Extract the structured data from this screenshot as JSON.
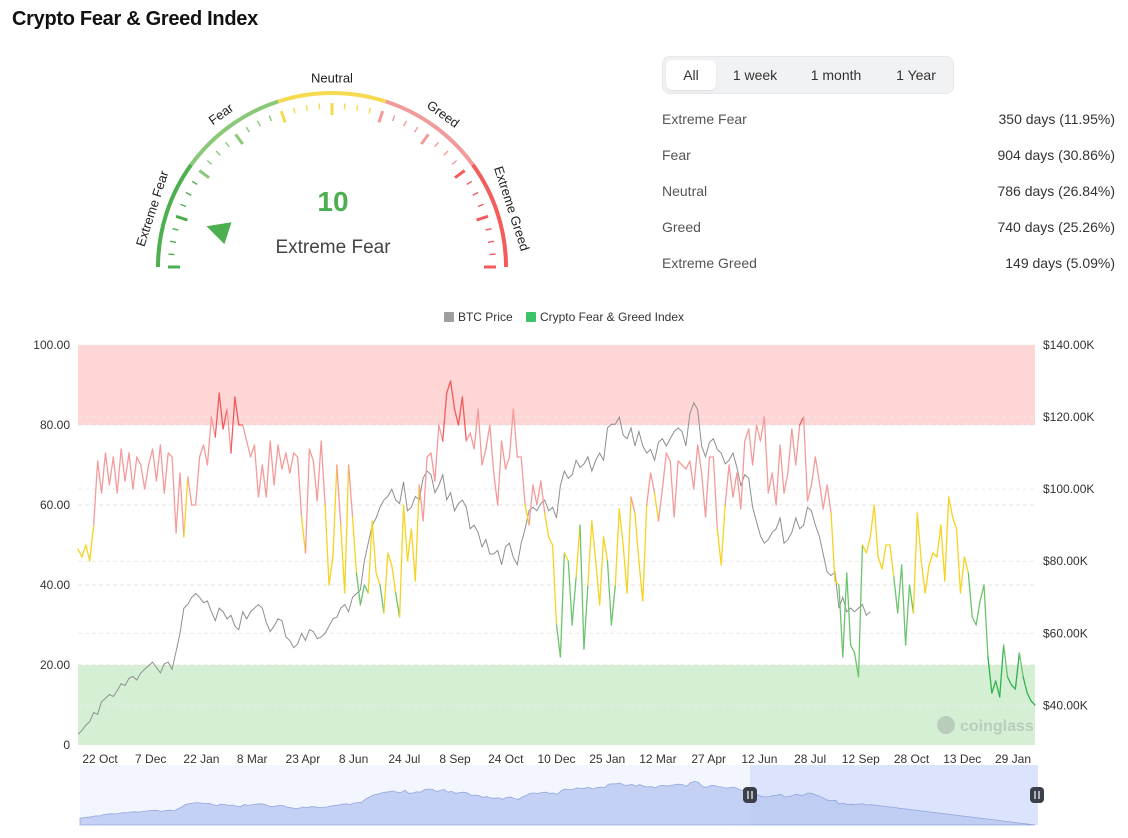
{
  "page": {
    "title": "Crypto Fear & Greed Index"
  },
  "gauge": {
    "value": "10",
    "status": "Extreme Fear",
    "zone_labels": [
      "Extreme Fear",
      "Fear",
      "Neutral",
      "Greed",
      "Extreme Greed"
    ],
    "colors": {
      "extreme_fear": "#4caf50",
      "fear": "#8bc97a",
      "neutral": "#f5d94e",
      "greed": "#f29b9b",
      "extreme_greed": "#f25c5c"
    }
  },
  "tabs": [
    {
      "label": "All",
      "active": true
    },
    {
      "label": "1 week",
      "active": false
    },
    {
      "label": "1 month",
      "active": false
    },
    {
      "label": "1 Year",
      "active": false
    }
  ],
  "stats": [
    {
      "label": "Extreme Fear",
      "value": "350 days (11.95%)"
    },
    {
      "label": "Fear",
      "value": "904 days (30.86%)"
    },
    {
      "label": "Neutral",
      "value": "786 days (26.84%)"
    },
    {
      "label": "Greed",
      "value": "740 days (25.26%)"
    },
    {
      "label": "Extreme Greed",
      "value": "149 days (5.09%)"
    }
  ],
  "legend": [
    {
      "label": "BTC Price",
      "color": "#9e9e9e"
    },
    {
      "label": "Crypto Fear & Greed Index",
      "color": "#3cc26a"
    }
  ],
  "watermark": "coinglass",
  "chart_data": {
    "type": "line",
    "x_tick_labels": [
      "22 Oct",
      "7 Dec",
      "22 Jan",
      "8 Mar",
      "23 Apr",
      "8 Jun",
      "24 Jul",
      "8 Sep",
      "24 Oct",
      "10 Dec",
      "25 Jan",
      "12 Mar",
      "27 Apr",
      "12 Jun",
      "28 Jul",
      "12 Sep",
      "28 Oct",
      "13 Dec",
      "29 Jan"
    ],
    "y_left_ticks": [
      "100.00",
      "80.00",
      "60.00",
      "40.00",
      "20.00",
      "0"
    ],
    "y_right_ticks": [
      "$140.00K",
      "$120.00K",
      "$100.00K",
      "$80.00K",
      "$60.00K",
      "$40.00K"
    ],
    "ylim_left": [
      0,
      100
    ],
    "ylim_right": [
      29000,
      140000
    ],
    "zones": [
      {
        "from": 80,
        "to": 100,
        "color": "#ffd6d6"
      },
      {
        "from": 0,
        "to": 20,
        "color": "#d5efd5"
      }
    ],
    "band_colors": {
      "extreme_greed": "#f05a5a",
      "greed": "#f59a9a",
      "neutral": "#f5d320",
      "fear": "#6cc46c",
      "extreme_fear": "#2fb34a"
    },
    "grid": true,
    "legend_position": "top-center",
    "series": [
      {
        "name": "Crypto Fear & Greed Index",
        "axis": "left",
        "values": [
          49,
          47,
          50,
          46,
          55,
          71,
          63,
          73,
          65,
          72,
          63,
          74,
          66,
          73,
          64,
          72,
          70,
          64,
          70,
          74,
          66,
          75,
          63,
          73,
          72,
          53,
          68,
          52,
          67,
          60,
          60,
          72,
          75,
          70,
          82,
          77,
          88,
          79,
          84,
          73,
          87,
          80,
          80,
          76,
          72,
          75,
          62,
          70,
          62,
          76,
          65,
          75,
          69,
          73,
          68,
          73,
          72,
          57,
          48,
          74,
          71,
          61,
          76,
          60,
          40,
          47,
          70,
          55,
          38,
          70,
          57,
          43,
          35,
          40,
          38,
          56,
          43,
          40,
          33,
          48,
          45,
          38,
          32,
          60,
          46,
          54,
          41,
          65,
          56,
          72,
          73,
          66,
          80,
          76,
          88,
          91,
          84,
          80,
          87,
          76,
          78,
          74,
          84,
          70,
          74,
          80,
          68,
          60,
          76,
          69,
          72,
          84,
          72,
          72,
          60,
          55,
          65,
          60,
          66,
          58,
          52,
          50,
          30,
          22,
          48,
          46,
          30,
          42,
          55,
          24,
          40,
          56,
          46,
          35,
          52,
          46,
          30,
          40,
          59,
          50,
          38,
          62,
          58,
          46,
          36,
          60,
          68,
          63,
          56,
          64,
          73,
          71,
          57,
          71,
          70,
          69,
          71,
          64,
          75,
          68,
          57,
          72,
          72,
          54,
          45,
          60,
          70,
          62,
          68,
          59,
          76,
          79,
          70,
          80,
          76,
          82,
          63,
          68,
          60,
          75,
          63,
          68,
          79,
          70,
          80,
          82,
          61,
          65,
          72,
          66,
          59,
          65,
          58,
          41,
          40,
          22,
          43,
          25,
          23,
          17,
          50,
          48,
          52,
          60,
          47,
          44,
          50,
          50,
          42,
          33,
          45,
          25,
          40,
          33,
          58,
          46,
          38,
          45,
          48,
          47,
          55,
          41,
          62,
          57,
          54,
          38,
          47,
          43,
          32,
          30,
          36,
          40,
          22,
          13,
          16,
          12,
          25,
          17,
          15,
          14,
          23,
          17,
          13,
          11,
          10
        ]
      },
      {
        "name": "BTC Price",
        "axis": "right",
        "values": [
          32000,
          33000,
          34500,
          35500,
          38000,
          37500,
          41000,
          42000,
          43000,
          42500,
          44000,
          46000,
          45500,
          47500,
          48000,
          47000,
          49000,
          50000,
          51000,
          52000,
          50500,
          49000,
          51500,
          52000,
          50000,
          55000,
          60000,
          67000,
          68000,
          70000,
          71000,
          70000,
          68500,
          69000,
          66000,
          63500,
          67000,
          66000,
          64000,
          65000,
          62000,
          61000,
          66000,
          64000,
          66000,
          67000,
          68000,
          67000,
          63000,
          60500,
          62000,
          64000,
          63500,
          59000,
          58000,
          56000,
          57000,
          60000,
          58000,
          61000,
          60500,
          58500,
          59000,
          60000,
          62000,
          64000,
          64500,
          67000,
          68000,
          66000,
          70000,
          71000,
          72000,
          80000,
          85000,
          90000,
          92000,
          95000,
          97000,
          98000,
          100000,
          97000,
          96000,
          102000,
          94000,
          95000,
          98000,
          97000,
          103000,
          105000,
          104000,
          99000,
          101000,
          104000,
          97000,
          99000,
          94000,
          96000,
          97000,
          95000,
          89000,
          90000,
          88000,
          84000,
          86000,
          82000,
          82000,
          83000,
          79000,
          84000,
          85000,
          81000,
          79000,
          85000,
          89000,
          94000,
          95000,
          94000,
          96000,
          97000,
          94000,
          95000,
          92000,
          101000,
          105000,
          103000,
          104000,
          108000,
          106000,
          107000,
          109000,
          105000,
          108000,
          110000,
          108000,
          117000,
          118000,
          118000,
          120000,
          115000,
          114000,
          117000,
          112000,
          116000,
          112000,
          110000,
          111000,
          108000,
          113000,
          114000,
          112000,
          114000,
          116000,
          117000,
          116000,
          112000,
          121000,
          124000,
          122000,
          112000,
          109000,
          113000,
          114000,
          111000,
          110000,
          107000,
          108000,
          110000,
          106000,
          101000,
          104000,
          103000,
          95000,
          91000,
          87000,
          85000,
          86000,
          88000,
          89000,
          92000,
          85000,
          86000,
          88000,
          92000,
          89000,
          90000,
          95000,
          94000,
          90000,
          87000,
          82000,
          77000,
          76000,
          77000,
          67000,
          70000,
          66000,
          67000,
          66000,
          67000,
          68000,
          65000,
          66000
        ]
      }
    ]
  }
}
